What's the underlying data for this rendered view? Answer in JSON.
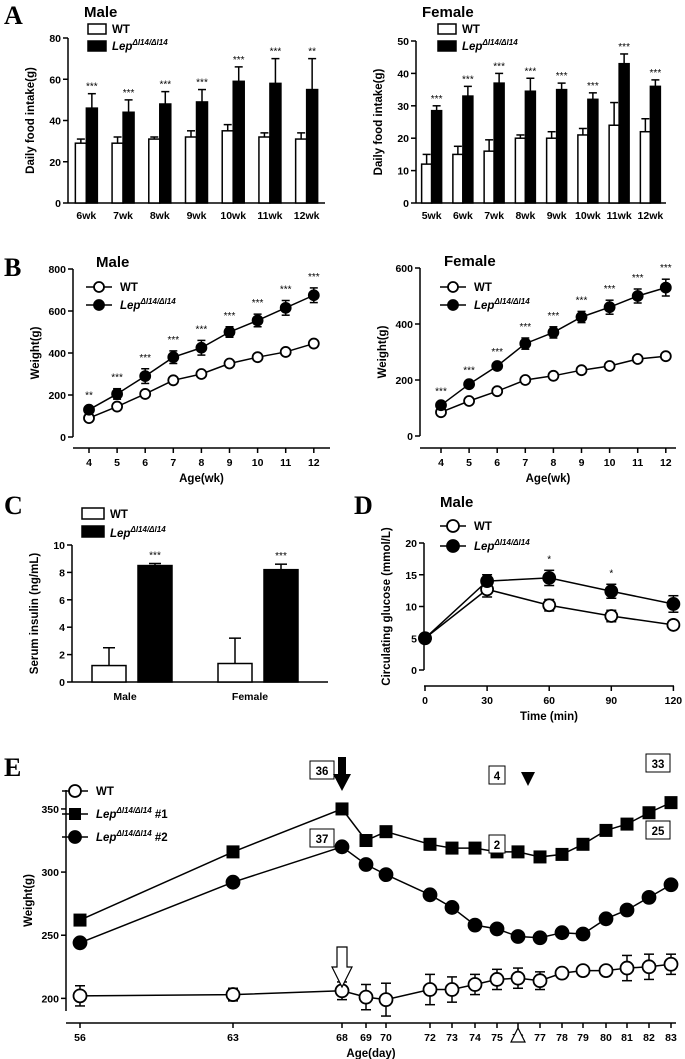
{
  "panel_labels": {
    "A": "A",
    "B": "B",
    "C": "C",
    "D": "D",
    "E": "E"
  },
  "chart_data": [
    {
      "id": "A_male",
      "type": "bar",
      "title": "Male",
      "ylabel": "Daily food intake(g)",
      "xlabel": "",
      "ylim": [
        0,
        80
      ],
      "yticks": [
        0,
        20,
        40,
        60,
        80
      ],
      "categories": [
        "6wk",
        "7wk",
        "8wk",
        "9wk",
        "10wk",
        "11wk",
        "12wk"
      ],
      "legend": [
        {
          "name": "WT",
          "sub": ""
        },
        {
          "name": "Lep",
          "sub": "Δl14/Δl14"
        }
      ],
      "series": [
        {
          "name": "WT",
          "values": [
            29,
            29,
            31,
            32,
            35,
            32,
            31
          ],
          "errors": [
            2,
            3,
            1,
            3,
            3,
            2,
            3
          ]
        },
        {
          "name": "LepΔl14/Δl14",
          "values": [
            46,
            44,
            48,
            49,
            59,
            58,
            55
          ],
          "errors": [
            7,
            6,
            6,
            6,
            7,
            12,
            15
          ]
        }
      ],
      "significance": [
        "***",
        "***",
        "***",
        "***",
        "***",
        "***",
        "**"
      ]
    },
    {
      "id": "A_female",
      "type": "bar",
      "title": "Female",
      "ylabel": "Daily food intake(g)",
      "xlabel": "",
      "ylim": [
        0,
        50
      ],
      "yticks": [
        0,
        10,
        20,
        30,
        40,
        50
      ],
      "categories": [
        "5wk",
        "6wk",
        "7wk",
        "8wk",
        "9wk",
        "10wk",
        "11wk",
        "12wk"
      ],
      "legend": [
        {
          "name": "WT",
          "sub": ""
        },
        {
          "name": "Lep",
          "sub": "Δl14/Δl14"
        }
      ],
      "series": [
        {
          "name": "WT",
          "values": [
            12,
            15,
            16,
            20,
            20,
            21,
            24,
            22
          ],
          "errors": [
            3,
            2.5,
            3.5,
            1,
            2,
            2,
            7,
            4
          ]
        },
        {
          "name": "LepΔl14/Δl14",
          "values": [
            28.5,
            33,
            37,
            34.5,
            35,
            32,
            43,
            36
          ],
          "errors": [
            1.5,
            3,
            3,
            4,
            2,
            2,
            3,
            2
          ]
        }
      ],
      "significance": [
        "***",
        "***",
        "***",
        "***",
        "***",
        "***",
        "***",
        "***"
      ]
    },
    {
      "id": "B_male",
      "type": "line",
      "title": "Male",
      "ylabel": "Weight(g)",
      "xlabel": "Age(wk)",
      "ylim": [
        0,
        800
      ],
      "yticks": [
        0,
        200,
        400,
        600,
        800
      ],
      "x": [
        4,
        5,
        6,
        7,
        8,
        9,
        10,
        11,
        12
      ],
      "legend": [
        {
          "name": "WT",
          "sub": ""
        },
        {
          "name": "Lep",
          "sub": "Δl14/Δl14"
        }
      ],
      "series": [
        {
          "name": "WT",
          "marker": "open-circle",
          "values": [
            90,
            145,
            205,
            270,
            300,
            350,
            380,
            405,
            445
          ],
          "errors": [
            0,
            0,
            0,
            0,
            0,
            0,
            0,
            0,
            0
          ]
        },
        {
          "name": "LepΔl14/Δl14",
          "marker": "filled-circle",
          "values": [
            130,
            205,
            290,
            380,
            425,
            500,
            555,
            615,
            675
          ],
          "errors": [
            15,
            25,
            35,
            30,
            35,
            25,
            30,
            35,
            35
          ]
        }
      ],
      "significance": [
        "**",
        "***",
        "***",
        "***",
        "***",
        "***",
        "***",
        "***",
        "***"
      ]
    },
    {
      "id": "B_female",
      "type": "line",
      "title": "Female",
      "ylabel": "Weight(g)",
      "xlabel": "Age(wk)",
      "ylim": [
        0,
        600
      ],
      "yticks": [
        0,
        200,
        400,
        600
      ],
      "x": [
        4,
        5,
        6,
        7,
        8,
        9,
        10,
        11,
        12
      ],
      "legend": [
        {
          "name": "WT",
          "sub": ""
        },
        {
          "name": "Lep",
          "sub": "Δl14/Δl14"
        }
      ],
      "series": [
        {
          "name": "WT",
          "marker": "open-circle",
          "values": [
            85,
            125,
            160,
            200,
            215,
            235,
            250,
            275,
            285
          ],
          "errors": [
            0,
            0,
            0,
            0,
            0,
            0,
            0,
            0,
            0
          ]
        },
        {
          "name": "LepΔl14/Δl14",
          "marker": "filled-circle",
          "values": [
            110,
            185,
            250,
            330,
            370,
            425,
            460,
            500,
            530
          ],
          "errors": [
            10,
            10,
            10,
            20,
            20,
            20,
            25,
            25,
            30
          ]
        }
      ],
      "significance": [
        "***",
        "***",
        "***",
        "***",
        "***",
        "***",
        "***",
        "***",
        "***"
      ]
    },
    {
      "id": "C",
      "type": "bar",
      "title": "",
      "ylabel": "Serum insulin (ng/mL)",
      "xlabel": "",
      "ylim": [
        0,
        10
      ],
      "yticks": [
        0,
        2,
        4,
        6,
        8,
        10
      ],
      "categories": [
        "Male",
        "Female"
      ],
      "legend": [
        {
          "name": "WT",
          "sub": ""
        },
        {
          "name": "Lep",
          "sub": "Δl14/Δl14"
        }
      ],
      "series": [
        {
          "name": "WT",
          "values": [
            1.2,
            1.35
          ],
          "errors": [
            1.3,
            1.85
          ]
        },
        {
          "name": "LepΔl14/Δl14",
          "values": [
            8.5,
            8.2
          ],
          "errors": [
            0.15,
            0.4
          ]
        }
      ],
      "significance": [
        "***",
        "***"
      ]
    },
    {
      "id": "D",
      "type": "line",
      "title": "Male",
      "ylabel": "Circulating glucose (mmol/L)",
      "xlabel": "Time (min)",
      "ylim": [
        0,
        20
      ],
      "yticks": [
        0,
        5,
        10,
        15,
        20
      ],
      "x": [
        0,
        30,
        60,
        90,
        120
      ],
      "legend": [
        {
          "name": "WT",
          "sub": ""
        },
        {
          "name": "Lep",
          "sub": "Δl14/Δl14"
        }
      ],
      "series": [
        {
          "name": "WT",
          "marker": "open-circle",
          "values": [
            5,
            12.7,
            10.2,
            8.5,
            7.1
          ],
          "errors": [
            0.3,
            1.2,
            0.9,
            0.9,
            0.3
          ]
        },
        {
          "name": "LepΔl14/Δl14",
          "marker": "filled-circle",
          "values": [
            5,
            14,
            14.5,
            12.4,
            10.4
          ],
          "errors": [
            0.3,
            1,
            1.2,
            1.1,
            1.3
          ]
        }
      ],
      "significance": [
        "",
        "",
        "*",
        "*",
        ""
      ]
    },
    {
      "id": "E",
      "type": "line",
      "title": "",
      "ylabel": "Weight(g)",
      "xlabel": "Age(day)",
      "ylim": [
        190,
        365
      ],
      "yticks": [
        200,
        250,
        300,
        350
      ],
      "x": [
        56,
        63,
        68,
        69,
        70,
        72,
        73,
        74,
        75,
        76,
        77,
        78,
        79,
        80,
        81,
        82,
        83
      ],
      "legend": [
        {
          "name": "WT",
          "sub": "",
          "suffix": ""
        },
        {
          "name": "Lep",
          "sub": "Δl14/Δl14",
          "suffix": " #1"
        },
        {
          "name": "Lep",
          "sub": "Δl14/Δl14",
          "suffix": " #2"
        }
      ],
      "series": [
        {
          "name": "WT",
          "marker": "open-circle",
          "values": [
            202,
            203,
            206,
            201,
            199,
            207,
            207,
            211,
            215,
            216,
            214,
            220,
            222,
            222,
            224,
            225,
            227
          ],
          "errors": [
            8,
            5,
            7,
            10,
            13,
            12,
            10,
            8,
            8,
            8,
            7,
            3,
            3,
            3,
            10,
            10,
            8
          ]
        },
        {
          "name": "LepΔl14/Δl14 #1",
          "marker": "filled-square",
          "values": [
            262,
            316,
            350,
            325,
            332,
            322,
            319,
            319,
            316,
            316,
            312,
            314,
            322,
            333,
            338,
            347,
            355
          ],
          "errors": [
            0,
            0,
            0,
            0,
            0,
            0,
            0,
            0,
            0,
            0,
            0,
            0,
            0,
            0,
            0,
            0,
            0
          ]
        },
        {
          "name": "LepΔl14/Δl14 #2",
          "marker": "filled-circle",
          "values": [
            244,
            292,
            320,
            306,
            298,
            282,
            272,
            258,
            255,
            249,
            248,
            252,
            251,
            263,
            270,
            280,
            290
          ],
          "errors": [
            0,
            0,
            0,
            0,
            0,
            0,
            0,
            0,
            0,
            0,
            0,
            0,
            0,
            0,
            0,
            0,
            0
          ]
        }
      ],
      "annotations": [
        {
          "text": "36",
          "boxed": true,
          "x": 68,
          "y": 350
        },
        {
          "text": "37",
          "boxed": true,
          "x": 68,
          "y": 320
        },
        {
          "text": "4",
          "boxed": true,
          "x": 75,
          "y": 316
        },
        {
          "text": "2",
          "boxed": true,
          "x": 75,
          "y": 255
        },
        {
          "text": "33",
          "boxed": true,
          "x": 83,
          "y": 355
        },
        {
          "text": "25",
          "boxed": true,
          "x": 83,
          "y": 290
        },
        {
          "kind": "filled-arrow-down",
          "x": 68
        },
        {
          "kind": "open-arrow-down",
          "x": 68
        },
        {
          "kind": "filled-triangle-down",
          "x": 76
        },
        {
          "kind": "open-triangle-up",
          "x": 76
        }
      ]
    }
  ]
}
